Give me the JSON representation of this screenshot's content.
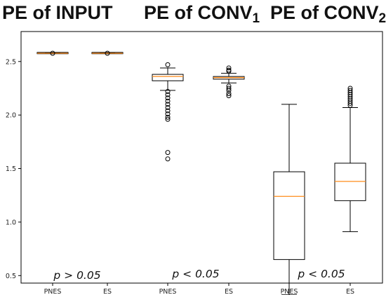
{
  "titles": [
    {
      "main": "PE of INPUT",
      "sub": ""
    },
    {
      "main": "PE of CONV",
      "sub": "1"
    },
    {
      "main": "PE of CONV",
      "sub": "2"
    }
  ],
  "pvalues": [
    "p > 0.05",
    "p < 0.05",
    "p < 0.05"
  ],
  "colors": {
    "median": "#ff8c1a",
    "box": "#000000"
  },
  "chart_data": {
    "type": "box",
    "categories": [
      "PNES",
      "ES",
      "PNES",
      "ES",
      "PNES",
      "ES"
    ],
    "groups": [
      "PE of INPUT",
      "PE of CONV1",
      "PE of CONV2"
    ],
    "ylim": [
      0.43,
      2.78
    ],
    "yticks": [
      0.5,
      1.0,
      1.5,
      2.0,
      2.5
    ],
    "grid": false,
    "boxes": [
      {
        "label": "PNES",
        "group": "PE of INPUT",
        "whislo": 2.575,
        "q1": 2.575,
        "median": 2.577,
        "q3": 2.579,
        "whishi": 2.579,
        "fliers": [
          2.577
        ]
      },
      {
        "label": "ES",
        "group": "PE of INPUT",
        "whislo": 2.575,
        "q1": 2.575,
        "median": 2.577,
        "q3": 2.579,
        "whishi": 2.579,
        "fliers": [
          2.577
        ]
      },
      {
        "label": "PNES",
        "group": "PE of CONV1",
        "whislo": 2.23,
        "q1": 2.32,
        "median": 2.36,
        "q3": 2.38,
        "whishi": 2.44,
        "fliers": [
          2.47,
          2.22,
          2.19,
          2.16,
          2.13,
          2.1,
          2.07,
          2.04,
          2.01,
          1.98,
          1.96,
          1.65,
          1.59
        ]
      },
      {
        "label": "ES",
        "group": "PE of CONV1",
        "whislo": 2.3,
        "q1": 2.335,
        "median": 2.35,
        "q3": 2.36,
        "whishi": 2.39,
        "fliers": [
          2.44,
          2.42,
          2.41,
          2.27,
          2.25,
          2.23,
          2.2,
          2.18
        ]
      },
      {
        "label": "PNES",
        "group": "PE of CONV2",
        "whislo": 0.32,
        "q1": 0.65,
        "median": 1.24,
        "q3": 1.47,
        "whishi": 2.1,
        "fliers": []
      },
      {
        "label": "ES",
        "group": "PE of CONV2",
        "whislo": 0.91,
        "q1": 1.2,
        "median": 1.38,
        "q3": 1.55,
        "whishi": 2.07,
        "fliers": [
          2.09,
          2.11,
          2.13,
          2.15,
          2.17,
          2.19,
          2.21,
          2.23,
          2.25
        ]
      }
    ]
  }
}
